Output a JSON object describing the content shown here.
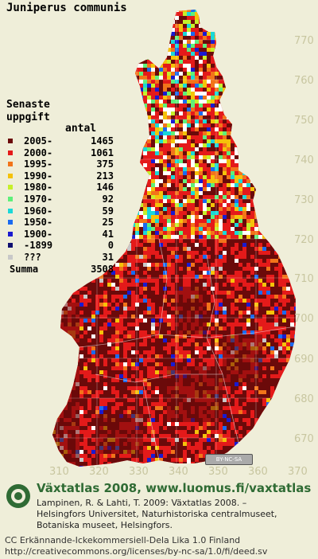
{
  "map": {
    "species": "Juniperus communis",
    "legend": {
      "title_line1": "Senaste",
      "title_line2": "uppgift",
      "count_header": "antal",
      "entries": [
        {
          "label": "2005-",
          "count": "1465",
          "color": "#6b0a0a"
        },
        {
          "label": "2000-",
          "count": "1061",
          "color": "#e41a1a"
        },
        {
          "label": "1995-",
          "count": "375",
          "color": "#f2741a"
        },
        {
          "label": "1990-",
          "count": "213",
          "color": "#f5c20a"
        },
        {
          "label": "1980-",
          "count": "146",
          "color": "#c6f02a"
        },
        {
          "label": "1970-",
          "count": "92",
          "color": "#5ef07a"
        },
        {
          "label": "1960-",
          "count": "59",
          "color": "#1ad8d8"
        },
        {
          "label": "1950-",
          "count": "25",
          "color": "#1a6af0"
        },
        {
          "label": "1900-",
          "count": "41",
          "color": "#1a1ad0"
        },
        {
          "label": "-1899",
          "count": "0",
          "color": "#101070"
        },
        {
          "label": "???",
          "count": "31",
          "color": "#c8c8c8"
        }
      ],
      "total_label": "Summa",
      "total_count": "3508"
    },
    "y_ticks": [
      "770",
      "760",
      "750",
      "740",
      "730",
      "720",
      "710",
      "700",
      "690",
      "680",
      "670"
    ],
    "x_ticks": [
      "310",
      "320",
      "330",
      "340",
      "350",
      "360",
      "370"
    ],
    "license_badge": "BY-NC-SA"
  },
  "footer": {
    "title": "Växtatlas 2008, www.luomus.fi/vaxtatlas",
    "citation_line1": "Lampinen, R. & Lahti, T. 2009: Växtatlas 2008. –",
    "citation_line2": "Helsingfors Universitet, Naturhistoriska centralmuseet,",
    "citation_line3": "Botaniska museet, Helsingfors.",
    "license_line1": "CC Erkännande-Ickekommersiell-Dela Lika 1.0 Finland",
    "license_line2": "http://creativecommons.org/licenses/by-nc-sa/1.0/fi/deed.sv"
  }
}
